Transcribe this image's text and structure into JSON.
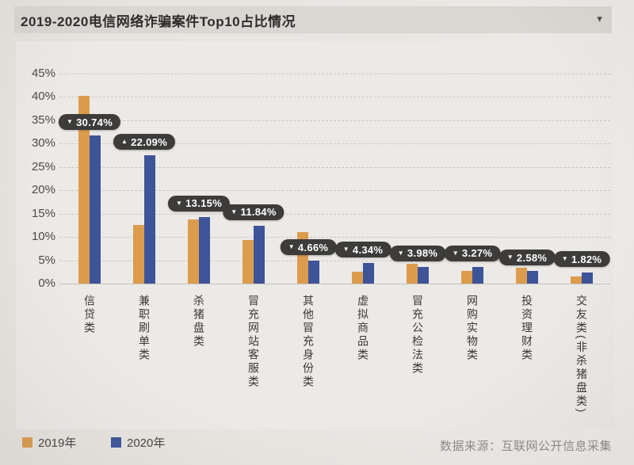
{
  "header": {
    "title": "2019-2020电信网络诈骗案件Top10占比情况",
    "collapse_icon": "▼"
  },
  "chart_data": {
    "type": "bar",
    "title": "2019-2020电信网络诈骗案件Top10占比情况",
    "categories": [
      "信贷类",
      "兼职刷单类",
      "杀猪盘类",
      "冒充网站客服类",
      "其他冒充身份类",
      "虚拟商品类",
      "冒充公检法类",
      "网购实物类",
      "投资理财类",
      "交友类(非杀猪盘类)"
    ],
    "series": [
      {
        "name": "2019年",
        "color": "#DC9C4E",
        "values": [
          40.3,
          12.5,
          13.7,
          9.3,
          11.1,
          2.5,
          4.2,
          2.7,
          3.4,
          1.6
        ]
      },
      {
        "name": "2020年",
        "color": "#3E5499",
        "values": [
          31.7,
          27.5,
          14.3,
          12.4,
          4.9,
          4.4,
          3.6,
          3.6,
          2.7,
          2.3
        ]
      }
    ],
    "data_labels": [
      {
        "text": "30.74%",
        "trend": "down"
      },
      {
        "text": "22.09%",
        "trend": "up"
      },
      {
        "text": "13.15%",
        "trend": "down"
      },
      {
        "text": "11.84%",
        "trend": "down"
      },
      {
        "text": "4.66%",
        "trend": "down"
      },
      {
        "text": "4.34%",
        "trend": "down"
      },
      {
        "text": "3.98%",
        "trend": "down"
      },
      {
        "text": "3.27%",
        "trend": "down"
      },
      {
        "text": "2.58%",
        "trend": "down"
      },
      {
        "text": "1.82%",
        "trend": "down"
      }
    ],
    "ylim": [
      0,
      45
    ],
    "yticks": [
      "45%",
      "40%",
      "35%",
      "30%",
      "25%",
      "20%",
      "15%",
      "10%",
      "5%",
      "0%"
    ],
    "grid": true,
    "legend_position": "bottom-left"
  },
  "legend": {
    "items": [
      {
        "label": "2019年",
        "color": "#DC9C4E"
      },
      {
        "label": "2020年",
        "color": "#3E5499"
      }
    ]
  },
  "footer": {
    "source": "数据来源：互联网公开信息采集"
  },
  "colors": {
    "orange": "#DC9C4E",
    "blue": "#3E5499",
    "pill_bg": "#3D3C3B",
    "pill_text": "#FFFFFF",
    "panel_bg": "#ECEAE6",
    "titlebar_bg": "#DAD7D3"
  }
}
